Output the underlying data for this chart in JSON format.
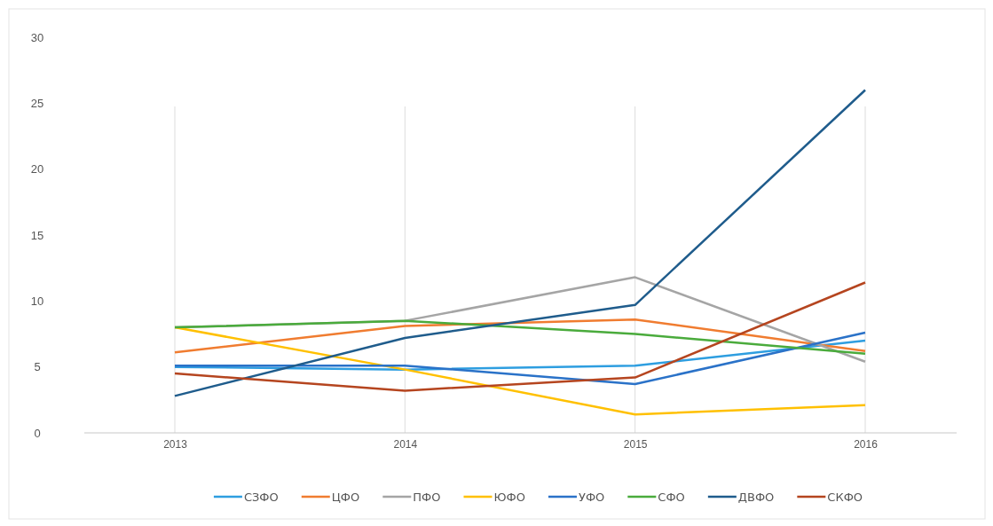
{
  "chart_data": {
    "type": "line",
    "categories": [
      "2013",
      "2014",
      "2015",
      "2016"
    ],
    "ylim": [
      0,
      30
    ],
    "yticks": [
      0,
      5,
      10,
      15,
      20,
      25,
      30
    ],
    "grid": "x",
    "legend": "bottom",
    "series": [
      {
        "name": "СЗФО",
        "color": "#2e9ee0",
        "values": [
          5.0,
          4.8,
          5.1,
          7.0
        ]
      },
      {
        "name": "ЦФО",
        "color": "#f07c30",
        "values": [
          6.1,
          8.1,
          8.6,
          6.2
        ]
      },
      {
        "name": "ПФО",
        "color": "#a5a5a5",
        "values": [
          8.0,
          8.5,
          11.8,
          5.4
        ]
      },
      {
        "name": "ЮФО",
        "color": "#ffc000",
        "values": [
          8.0,
          4.8,
          1.4,
          2.1
        ]
      },
      {
        "name": "УФО",
        "color": "#2a72c8",
        "values": [
          5.1,
          5.1,
          3.7,
          7.6
        ]
      },
      {
        "name": "СФО",
        "color": "#4aab3c",
        "values": [
          8.0,
          8.5,
          7.5,
          6.0
        ]
      },
      {
        "name": "ДВФО",
        "color": "#1f5c8c",
        "values": [
          2.8,
          7.2,
          9.7,
          26.0
        ]
      },
      {
        "name": "СКФО",
        "color": "#b5451f",
        "values": [
          4.5,
          3.2,
          4.2,
          11.4
        ]
      }
    ]
  }
}
